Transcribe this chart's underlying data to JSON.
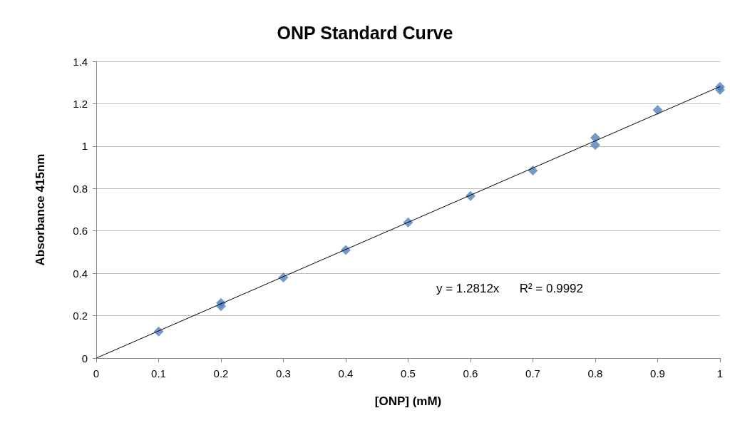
{
  "chart_data": {
    "type": "scatter",
    "title": "ONP Standard Curve",
    "xlabel": "[ONP] (mM)",
    "ylabel": "Absorbance 415nm",
    "annotations": [
      "y = 1.2812x      R² = 0.9992"
    ],
    "series": [
      {
        "color": "#4f81bd",
        "x": [
          0.1,
          0.2,
          0.2,
          0.3,
          0.4,
          0.5,
          0.6,
          0.7,
          0.8,
          0.8,
          0.9,
          1.0,
          1.0
        ],
        "values": [
          0.125,
          0.26,
          0.245,
          0.38,
          0.51,
          0.64,
          0.765,
          0.885,
          1.04,
          1.005,
          1.17,
          1.28,
          1.265
        ],
        "marker": "diamond"
      },
      {
        "type": "line",
        "color": "#000000",
        "x": [
          0,
          1
        ],
        "values": [
          0,
          1.2812
        ],
        "marker": "none",
        "line_style": "solid"
      }
    ],
    "xlim": [
      0,
      1
    ],
    "xticks": [
      0,
      0.1,
      0.2,
      0.3,
      0.4,
      0.5,
      0.6,
      0.7,
      0.8,
      0.9,
      1
    ],
    "ylim": [
      0,
      1.4
    ],
    "yticks": [
      0,
      0.2,
      0.4,
      0.6,
      0.8,
      1,
      1.2,
      1.4
    ],
    "grid": "y"
  }
}
